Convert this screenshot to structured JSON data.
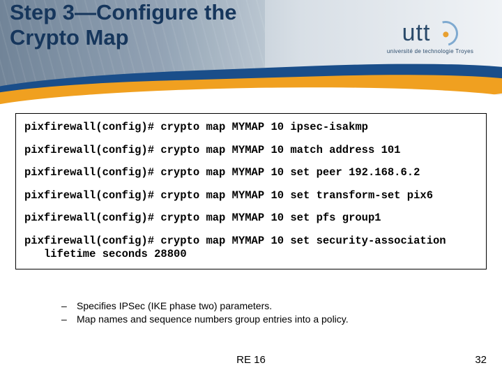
{
  "title": "Step 3—Configure the Crypto Map",
  "logo": {
    "text": "utt",
    "subtitle": "université de technologie Troyes"
  },
  "colors": {
    "title_color": "#16365c",
    "swoosh_blue": "#1a4e8a",
    "swoosh_orange": "#f0a020",
    "header_grad_start": "#8a9db0",
    "header_grad_end": "#f0f3f6",
    "border": "#000000",
    "text": "#000000"
  },
  "code": {
    "font": "Courier New",
    "lines": [
      "pixfirewall(config)# crypto map MYMAP 10 ipsec-isakmp",
      "pixfirewall(config)# crypto map MYMAP 10 match address 101",
      "pixfirewall(config)# crypto map MYMAP 10 set peer 192.168.6.2",
      "pixfirewall(config)# crypto map MYMAP 10 set transform-set pix6",
      "pixfirewall(config)# crypto map MYMAP 10 set pfs group1",
      "pixfirewall(config)# crypto map MYMAP 10 set security-association lifetime seconds 28800"
    ]
  },
  "bullets": [
    "Specifies IPSec (IKE phase two) parameters.",
    "Map names and sequence numbers group entries into a policy."
  ],
  "footer": {
    "code": "RE 16",
    "page": "32"
  }
}
